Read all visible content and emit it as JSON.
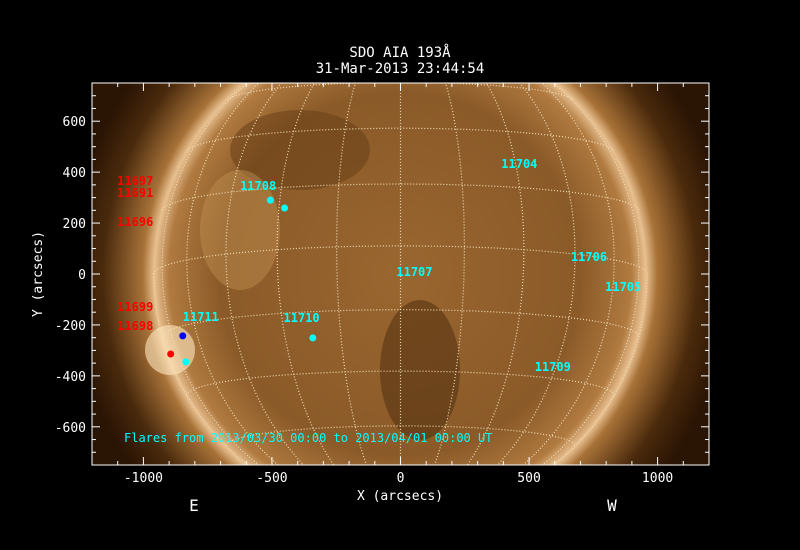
{
  "title": "SDO AIA 193Å",
  "timestamp": "31-Mar-2013 23:44:54",
  "xlabel": "X (arcsecs)",
  "ylabel": "Y (arcsecs)",
  "east_label": "E",
  "west_label": "W",
  "xlim": [
    -1200,
    1200
  ],
  "ylim": [
    -750,
    750
  ],
  "xticks": [
    "-1000",
    "-500",
    "0",
    "500",
    "1000"
  ],
  "xtick_values": [
    -1000,
    -500,
    0,
    500,
    1000
  ],
  "yticks": [
    "-600",
    "-400",
    "-200",
    "0",
    "200",
    "400",
    "600"
  ],
  "ytick_values": [
    -600,
    -400,
    -200,
    0,
    200,
    400,
    600
  ],
  "grid_spacing_deg": 15,
  "flare_note": "Flares from 2013/03/30 00:00 to 2013/04/01 00:00 UT",
  "colors": {
    "on_disk_label": "#00ffff",
    "off_disk_label": "#ff0000",
    "grid": "#f2dcb4",
    "background": "#000000"
  },
  "active_regions_on_disk": [
    {
      "label": "11704",
      "x": 392,
      "y": 435
    },
    {
      "label": "11708",
      "x": -624,
      "y": 349
    },
    {
      "label": "11707",
      "x": -16,
      "y": 12
    },
    {
      "label": "11706",
      "x": 663,
      "y": 71
    },
    {
      "label": "11705",
      "x": 796,
      "y": -47
    },
    {
      "label": "11709",
      "x": 522,
      "y": -361
    },
    {
      "label": "11710",
      "x": -455,
      "y": -169
    },
    {
      "label": "11711",
      "x": -847,
      "y": -165
    }
  ],
  "active_regions_off_disk": [
    {
      "label": "11697",
      "x": -1102,
      "y": 369
    },
    {
      "label": "11691",
      "x": -1102,
      "y": 322
    },
    {
      "label": "11696",
      "x": -1102,
      "y": 208
    },
    {
      "label": "11699",
      "x": -1102,
      "y": -125
    },
    {
      "label": "11698",
      "x": -1102,
      "y": -200
    }
  ],
  "flare_markers": [
    {
      "x": -506,
      "y": 290,
      "color": "#00ffff"
    },
    {
      "x": -451,
      "y": 259,
      "color": "#00ffff"
    },
    {
      "x": -341,
      "y": -251,
      "color": "#00ffff"
    },
    {
      "x": -847,
      "y": -243,
      "color": "#0000ff"
    },
    {
      "x": -894,
      "y": -314,
      "color": "#ff0000"
    },
    {
      "x": -835,
      "y": -345,
      "color": "#00ffff"
    }
  ]
}
